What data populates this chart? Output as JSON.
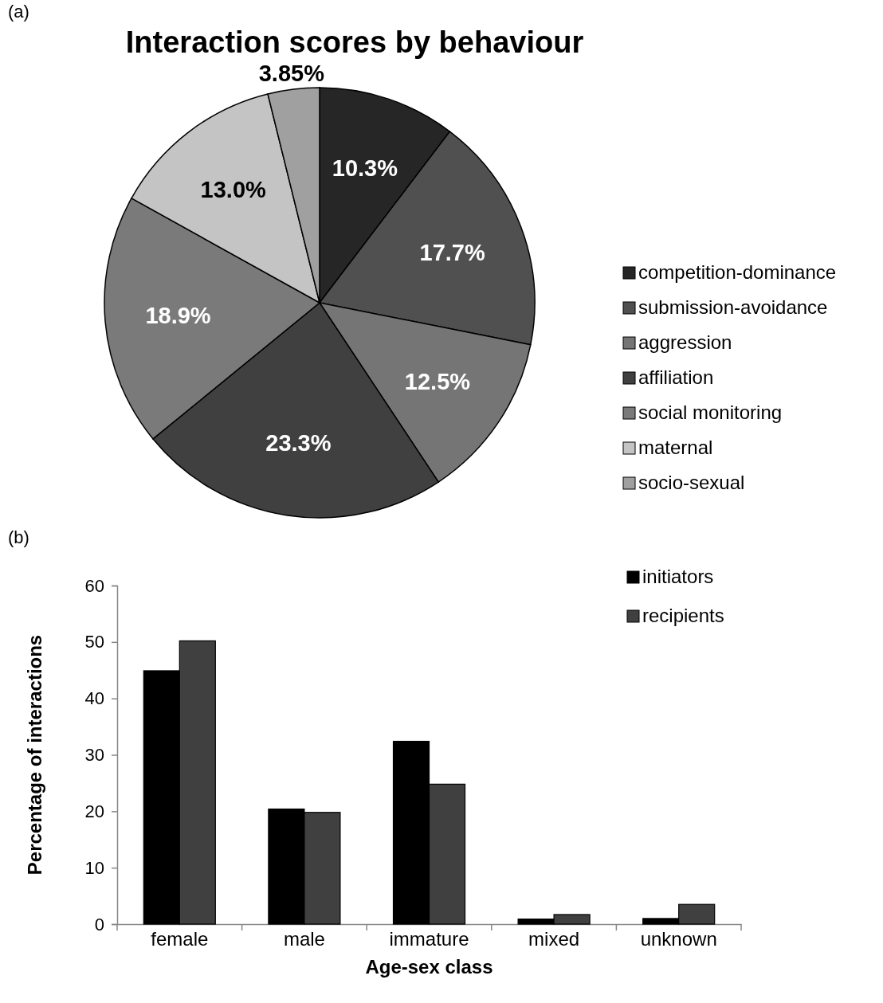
{
  "chart_data": [
    {
      "type": "pie",
      "title": "Interaction scores by behaviour",
      "annotations": [
        "(a)"
      ],
      "categories": [
        "competition-dominance",
        "submission-avoidance",
        "aggression",
        "affiliation",
        "social monitoring",
        "maternal",
        "socio-sexual"
      ],
      "values": [
        10.3,
        17.7,
        12.5,
        23.3,
        18.9,
        13.0,
        3.85
      ],
      "value_labels": [
        "10.3%",
        "17.7%",
        "12.5%",
        "23.3%",
        "18.9%",
        "13.0%",
        "3.85%"
      ],
      "colors": [
        "#262626",
        "#505050",
        "#757575",
        "#404040",
        "#7a7a7a",
        "#c4c4c4",
        "#a0a0a0"
      ],
      "legend": "right"
    },
    {
      "type": "bar",
      "annotations": [
        "(b)"
      ],
      "xlabel": "Age-sex class",
      "ylabel": "Percentage of interactions",
      "categories": [
        "female",
        "male",
        "immature",
        "mixed",
        "unknown"
      ],
      "series": [
        {
          "name": "initiators",
          "color": "#000000",
          "values": [
            44.9,
            20.4,
            32.4,
            0.9,
            1.0
          ]
        },
        {
          "name": "recipients",
          "color": "#404040",
          "values": [
            50.2,
            19.8,
            24.8,
            1.7,
            3.5
          ]
        }
      ],
      "ylim": [
        0,
        60
      ],
      "yticks": [
        0,
        10,
        20,
        30,
        40,
        50,
        60
      ],
      "grid": false,
      "legend": "top right"
    }
  ]
}
